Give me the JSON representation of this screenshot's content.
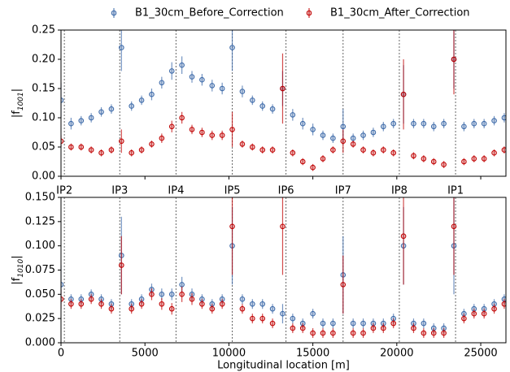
{
  "chart_data": [
    {
      "type": "scatter",
      "ylabel": [
        "|f",
        "1001",
        "|"
      ],
      "legend": "top",
      "x": [
        0,
        600,
        1200,
        1800,
        2400,
        3000,
        3600,
        4200,
        4800,
        5400,
        6000,
        6600,
        7200,
        7800,
        8400,
        9000,
        9600,
        10200,
        10800,
        11400,
        12000,
        12600,
        13200,
        13800,
        14400,
        15000,
        15600,
        16200,
        16800,
        17400,
        18000,
        18600,
        19200,
        19800,
        20400,
        21000,
        21600,
        22200,
        22800,
        23400,
        24000,
        24600,
        25200,
        25800,
        26400
      ],
      "xlim": [
        0,
        26500
      ],
      "ylim": [
        0,
        0.25
      ],
      "yticks": [
        {
          "value": 0,
          "label": "0.00"
        },
        {
          "value": 0.05,
          "label": "0.05"
        },
        {
          "value": 0.1,
          "label": "0.10"
        },
        {
          "value": 0.15,
          "label": "0.15"
        },
        {
          "value": 0.2,
          "label": "0.20"
        },
        {
          "value": 0.25,
          "label": "0.25"
        }
      ],
      "series": [
        {
          "name": "B1_30cm_Before_Correction",
          "color": "#3a68a8",
          "values": [
            0.13,
            0.09,
            0.095,
            0.1,
            0.11,
            0.115,
            0.22,
            0.12,
            0.13,
            0.14,
            0.16,
            0.18,
            0.19,
            0.17,
            0.165,
            0.155,
            0.15,
            0.22,
            0.145,
            0.13,
            0.12,
            0.115,
            0.15,
            0.105,
            0.09,
            0.08,
            0.07,
            0.065,
            0.085,
            0.065,
            0.07,
            0.075,
            0.085,
            0.09,
            0.14,
            0.09,
            0.09,
            0.085,
            0.09,
            0.2,
            0.085,
            0.09,
            0.09,
            0.095,
            0.1
          ],
          "errors": [
            0.03,
            0.01,
            0.008,
            0.008,
            0.008,
            0.008,
            0.04,
            0.008,
            0.008,
            0.01,
            0.01,
            0.015,
            0.015,
            0.01,
            0.01,
            0.01,
            0.01,
            0.04,
            0.01,
            0.008,
            0.008,
            0.008,
            0.03,
            0.01,
            0.01,
            0.01,
            0.008,
            0.008,
            0.03,
            0.008,
            0.008,
            0.008,
            0.008,
            0.008,
            0.05,
            0.008,
            0.008,
            0.008,
            0.008,
            0.05,
            0.008,
            0.008,
            0.008,
            0.008,
            0.008
          ]
        },
        {
          "name": "B1_30cm_After_Correction",
          "color": "#c00000",
          "values": [
            0.06,
            0.05,
            0.05,
            0.045,
            0.04,
            0.045,
            0.06,
            0.04,
            0.045,
            0.055,
            0.065,
            0.085,
            0.1,
            0.08,
            0.075,
            0.07,
            0.07,
            0.08,
            0.055,
            0.05,
            0.045,
            0.045,
            0.15,
            0.04,
            0.025,
            0.015,
            0.03,
            0.045,
            0.06,
            0.055,
            0.045,
            0.04,
            0.045,
            0.04,
            0.14,
            0.035,
            0.03,
            0.025,
            0.02,
            0.2,
            0.025,
            0.03,
            0.03,
            0.04,
            0.045
          ],
          "errors": [
            0.01,
            0.006,
            0.006,
            0.006,
            0.006,
            0.006,
            0.02,
            0.006,
            0.006,
            0.006,
            0.008,
            0.01,
            0.01,
            0.008,
            0.008,
            0.008,
            0.008,
            0.03,
            0.006,
            0.006,
            0.006,
            0.006,
            0.06,
            0.006,
            0.006,
            0.006,
            0.006,
            0.006,
            0.02,
            0.006,
            0.006,
            0.006,
            0.006,
            0.006,
            0.06,
            0.006,
            0.006,
            0.006,
            0.006,
            0.06,
            0.006,
            0.006,
            0.006,
            0.006,
            0.006
          ]
        }
      ]
    },
    {
      "type": "scatter",
      "ylabel": [
        "|f",
        "1010",
        "|"
      ],
      "xlabel": "Longitudinal location [m]",
      "x": [
        0,
        600,
        1200,
        1800,
        2400,
        3000,
        3600,
        4200,
        4800,
        5400,
        6000,
        6600,
        7200,
        7800,
        8400,
        9000,
        9600,
        10200,
        10800,
        11400,
        12000,
        12600,
        13200,
        13800,
        14400,
        15000,
        15600,
        16200,
        16800,
        17400,
        18000,
        18600,
        19200,
        19800,
        20400,
        21000,
        21600,
        22200,
        22800,
        23400,
        24000,
        24600,
        25200,
        25800,
        26400
      ],
      "xlim": [
        0,
        26500
      ],
      "ylim": [
        0,
        0.15
      ],
      "xticks": [
        0,
        5000,
        10000,
        15000,
        20000,
        25000
      ],
      "yticks": [
        {
          "value": 0,
          "label": "0.000"
        },
        {
          "value": 0.025,
          "label": "0.025"
        },
        {
          "value": 0.05,
          "label": "0.050"
        },
        {
          "value": 0.075,
          "label": "0.075"
        },
        {
          "value": 0.1,
          "label": "0.100"
        },
        {
          "value": 0.125,
          "label": "0.125"
        },
        {
          "value": 0.15,
          "label": "0.150"
        }
      ],
      "annotations": [
        {
          "label": "IP2",
          "x": 200
        },
        {
          "label": "IP3",
          "x": 3500
        },
        {
          "label": "IP4",
          "x": 6850
        },
        {
          "label": "IP5",
          "x": 10200
        },
        {
          "label": "IP6",
          "x": 13400
        },
        {
          "label": "IP7",
          "x": 16800
        },
        {
          "label": "IP8",
          "x": 20150
        },
        {
          "label": "IP1",
          "x": 23500
        }
      ],
      "series": [
        {
          "color": "#3a68a8",
          "values": [
            0.06,
            0.045,
            0.045,
            0.05,
            0.045,
            0.04,
            0.09,
            0.04,
            0.045,
            0.055,
            0.05,
            0.05,
            0.06,
            0.05,
            0.045,
            0.04,
            0.045,
            0.1,
            0.045,
            0.04,
            0.04,
            0.035,
            0.03,
            0.025,
            0.02,
            0.03,
            0.02,
            0.02,
            0.07,
            0.02,
            0.02,
            0.02,
            0.02,
            0.025,
            0.1,
            0.02,
            0.02,
            0.015,
            0.015,
            0.1,
            0.03,
            0.035,
            0.035,
            0.04,
            0.045
          ],
          "errors": [
            0.02,
            0.005,
            0.005,
            0.005,
            0.005,
            0.005,
            0.04,
            0.005,
            0.005,
            0.006,
            0.006,
            0.006,
            0.008,
            0.006,
            0.005,
            0.005,
            0.005,
            0.04,
            0.005,
            0.005,
            0.005,
            0.005,
            0.01,
            0.005,
            0.005,
            0.005,
            0.005,
            0.005,
            0.04,
            0.005,
            0.005,
            0.005,
            0.005,
            0.005,
            0.04,
            0.005,
            0.005,
            0.005,
            0.005,
            0.05,
            0.005,
            0.005,
            0.005,
            0.005,
            0.005
          ]
        },
        {
          "color": "#c00000",
          "values": [
            0.045,
            0.04,
            0.04,
            0.045,
            0.04,
            0.035,
            0.08,
            0.035,
            0.04,
            0.05,
            0.04,
            0.035,
            0.05,
            0.045,
            0.04,
            0.035,
            0.04,
            0.12,
            0.035,
            0.025,
            0.025,
            0.02,
            0.12,
            0.015,
            0.015,
            0.01,
            0.01,
            0.01,
            0.06,
            0.01,
            0.01,
            0.015,
            0.015,
            0.02,
            0.11,
            0.015,
            0.01,
            0.01,
            0.01,
            0.12,
            0.025,
            0.03,
            0.03,
            0.035,
            0.04
          ],
          "errors": [
            0.01,
            0.005,
            0.005,
            0.005,
            0.005,
            0.005,
            0.03,
            0.005,
            0.005,
            0.006,
            0.006,
            0.006,
            0.008,
            0.006,
            0.005,
            0.005,
            0.005,
            0.05,
            0.005,
            0.005,
            0.005,
            0.005,
            0.05,
            0.005,
            0.005,
            0.005,
            0.005,
            0.005,
            0.03,
            0.005,
            0.005,
            0.005,
            0.005,
            0.005,
            0.05,
            0.005,
            0.005,
            0.005,
            0.005,
            0.05,
            0.005,
            0.005,
            0.005,
            0.005,
            0.005
          ]
        }
      ]
    }
  ]
}
